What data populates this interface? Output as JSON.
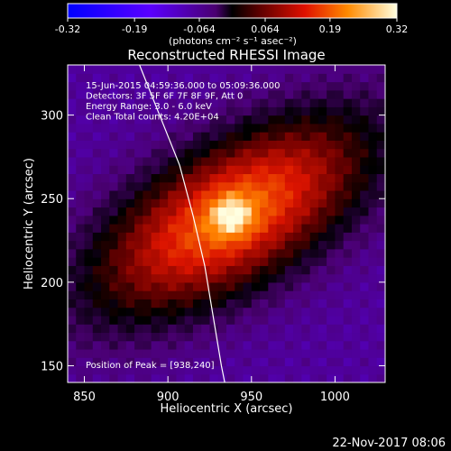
{
  "chart_data": {
    "type": "heatmap",
    "title": "Reconstructed RHESSI Image",
    "xlabel": "Heliocentric X (arcsec)",
    "ylabel": "Heliocentric Y (arcsec)",
    "xlim": [
      840,
      1030
    ],
    "ylim": [
      140,
      330
    ],
    "x_ticks": [
      850,
      900,
      950,
      1000
    ],
    "y_ticks": [
      150,
      200,
      250,
      300
    ],
    "colorbar": {
      "ticks": [
        "-0.32",
        "-0.19",
        "-0.064",
        "0.064",
        "0.19",
        "0.32"
      ],
      "tick_values": [
        -0.32,
        -0.19,
        -0.064,
        0.064,
        0.19,
        0.32
      ],
      "range": [
        -0.32,
        0.32
      ],
      "unit_label": "(photons cm⁻² s⁻¹ asec⁻²)"
    },
    "annotations": [
      "15-Jun-2015 04:59:36.000 to 05:09:36.000",
      "Detectors: 3F 5F 6F 7F 8F 9F, Att 0",
      "Energy Range: 3.0 - 6.0 keV",
      "Clean     Total counts: 4.20E+04"
    ],
    "peak_label": "Position of Peak = [938,240]",
    "peak": {
      "x": 938,
      "y": 240,
      "value": 0.32
    },
    "source_major_axis_angle_deg": 30,
    "source_sigma_major_arcsec": 62,
    "source_sigma_minor_arcsec": 28,
    "background_value": -0.1,
    "limb_points": [
      [
        883,
        330
      ],
      [
        895,
        300
      ],
      [
        907,
        270
      ],
      [
        915,
        240
      ],
      [
        922,
        210
      ],
      [
        927,
        180
      ],
      [
        932,
        150
      ],
      [
        934,
        140
      ]
    ]
  },
  "footer": {
    "date": "22-Nov-2017 08:06"
  }
}
